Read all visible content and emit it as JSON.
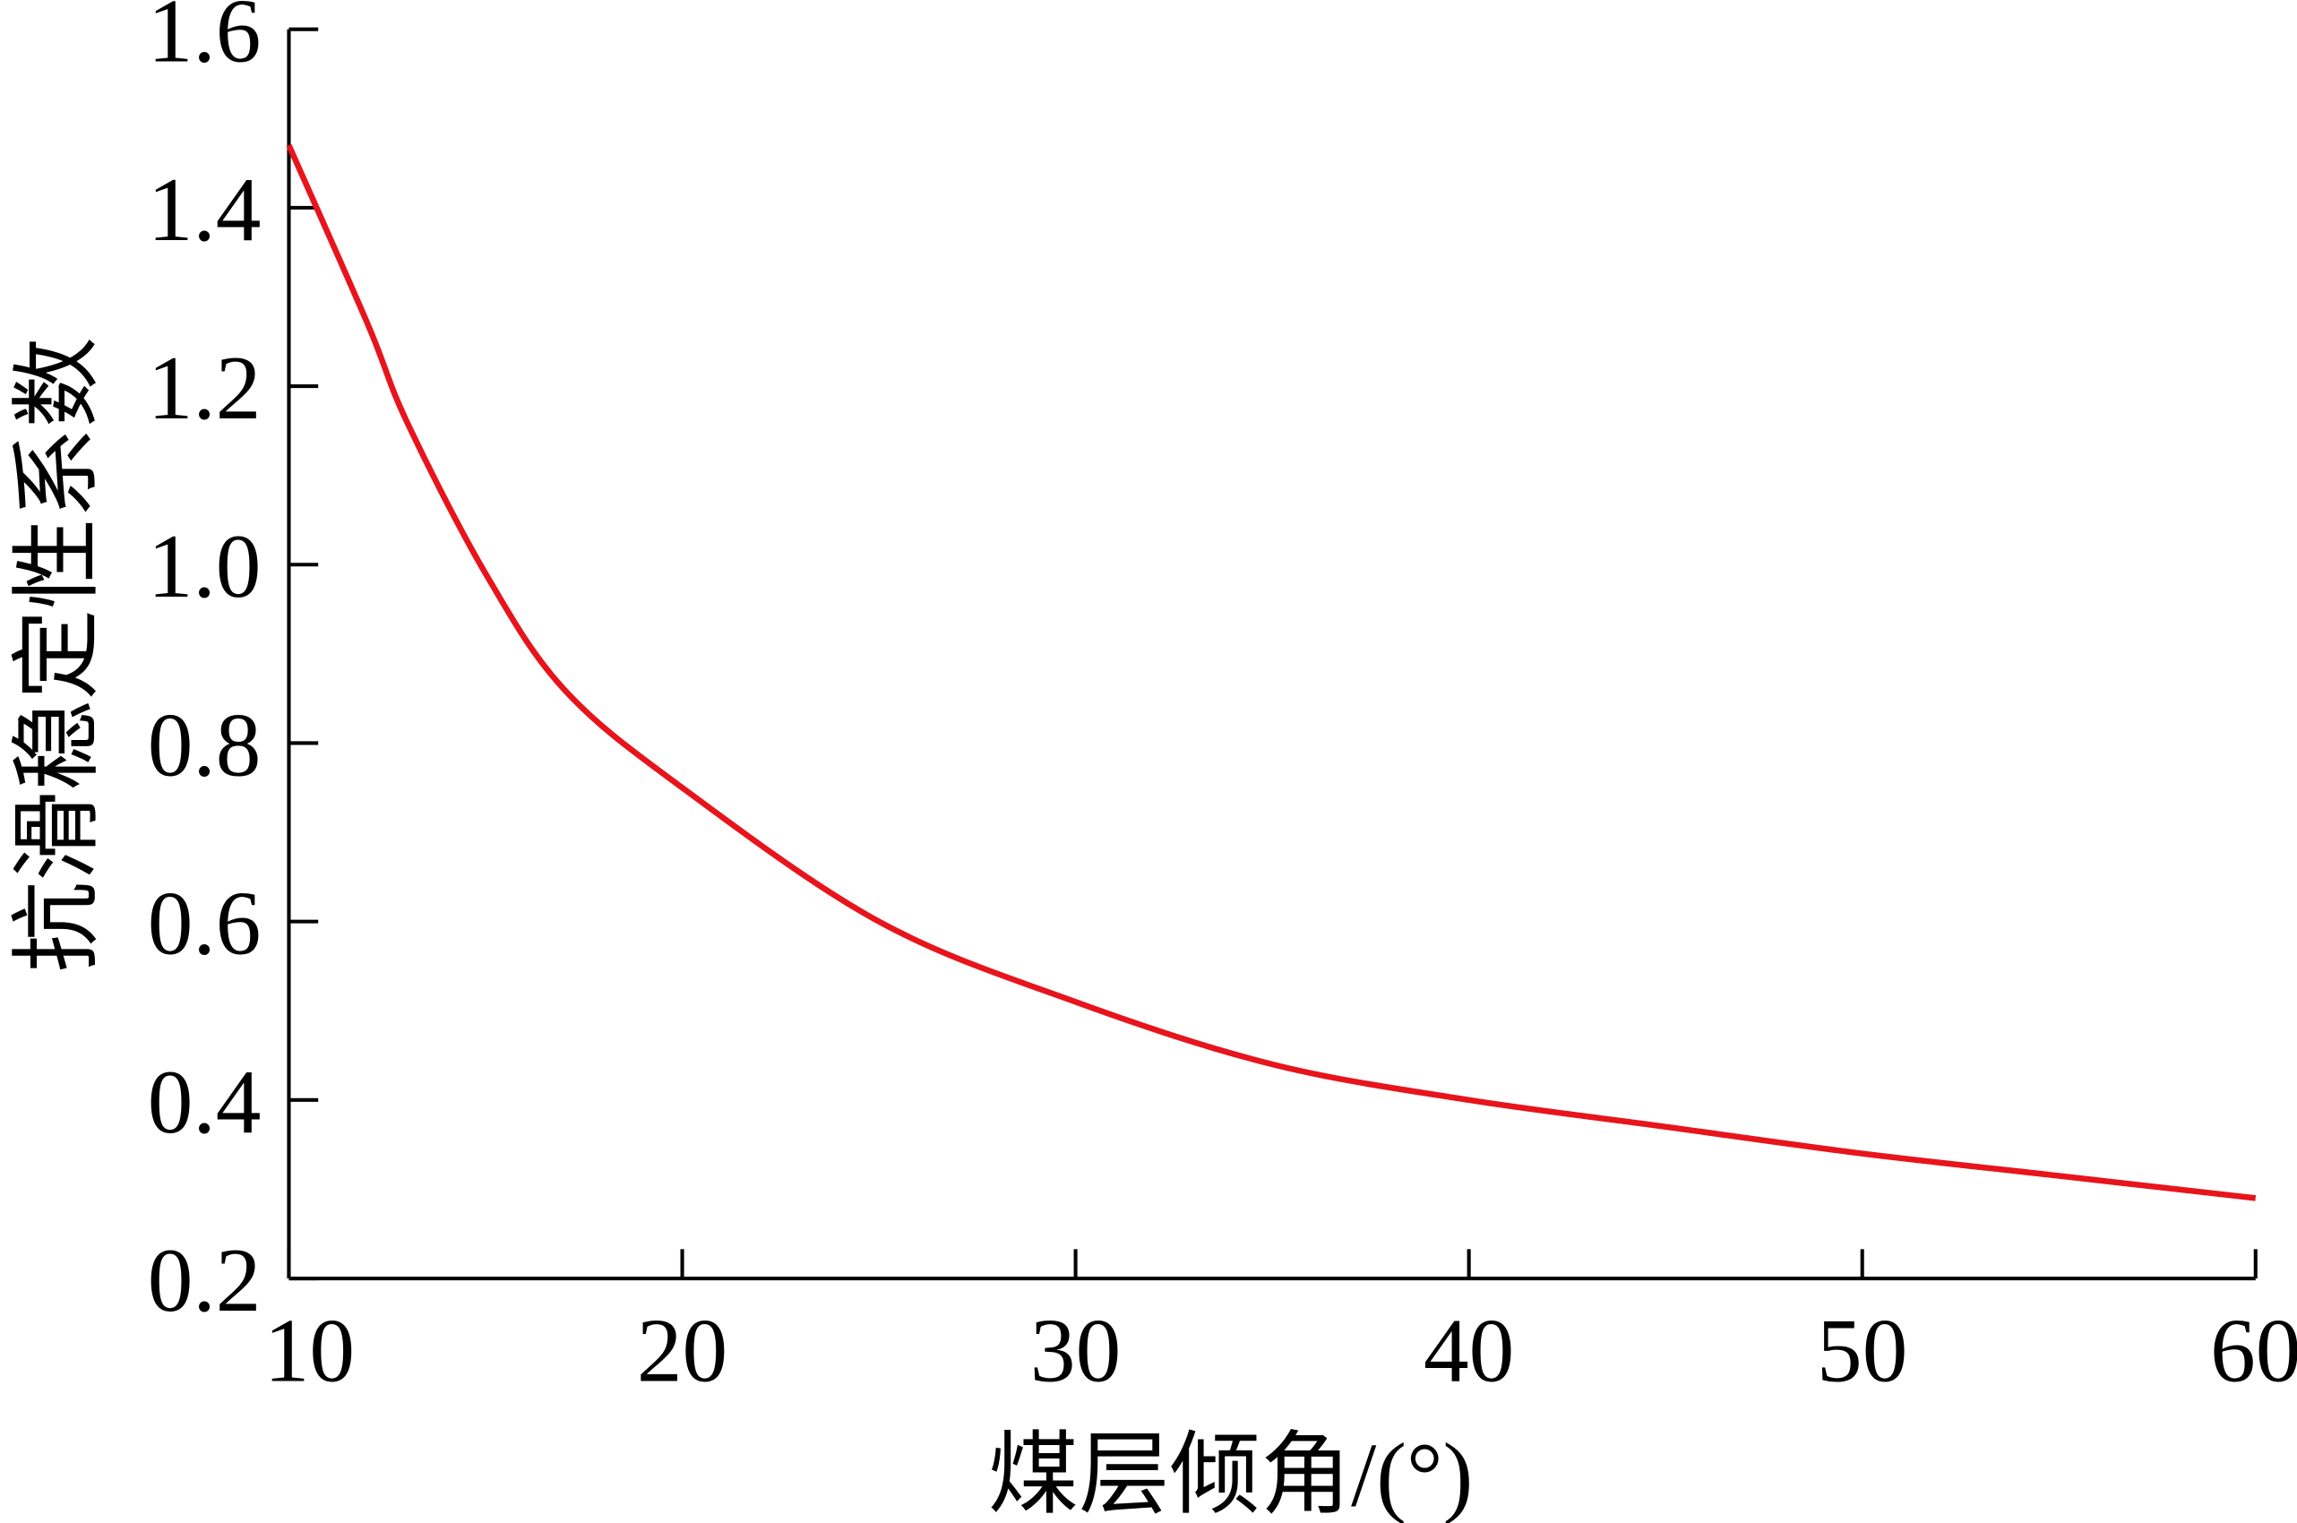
{
  "chart_data": {
    "type": "line",
    "title": "",
    "xlabel": "煤层倾角/(°)",
    "ylabel": "抗滑稳定性系数",
    "xlim": [
      10,
      60
    ],
    "ylim": [
      0.2,
      1.6
    ],
    "xticks": [
      "10",
      "20",
      "30",
      "40",
      "50",
      "60"
    ],
    "yticks": [
      "0.2",
      "0.4",
      "0.6",
      "0.8",
      "1.0",
      "1.2",
      "1.4",
      "1.6"
    ],
    "grid": false,
    "legend": "none",
    "series": [
      {
        "color": "#e8141c",
        "x": [
          10,
          12,
          13,
          15,
          17,
          20,
          25,
          30,
          35,
          40,
          45,
          50,
          55,
          60
        ],
        "y": [
          1.47,
          1.27,
          1.16,
          0.99,
          0.86,
          0.75,
          0.6,
          0.51,
          0.44,
          0.4,
          0.37,
          0.34,
          0.315,
          0.29
        ]
      }
    ]
  }
}
